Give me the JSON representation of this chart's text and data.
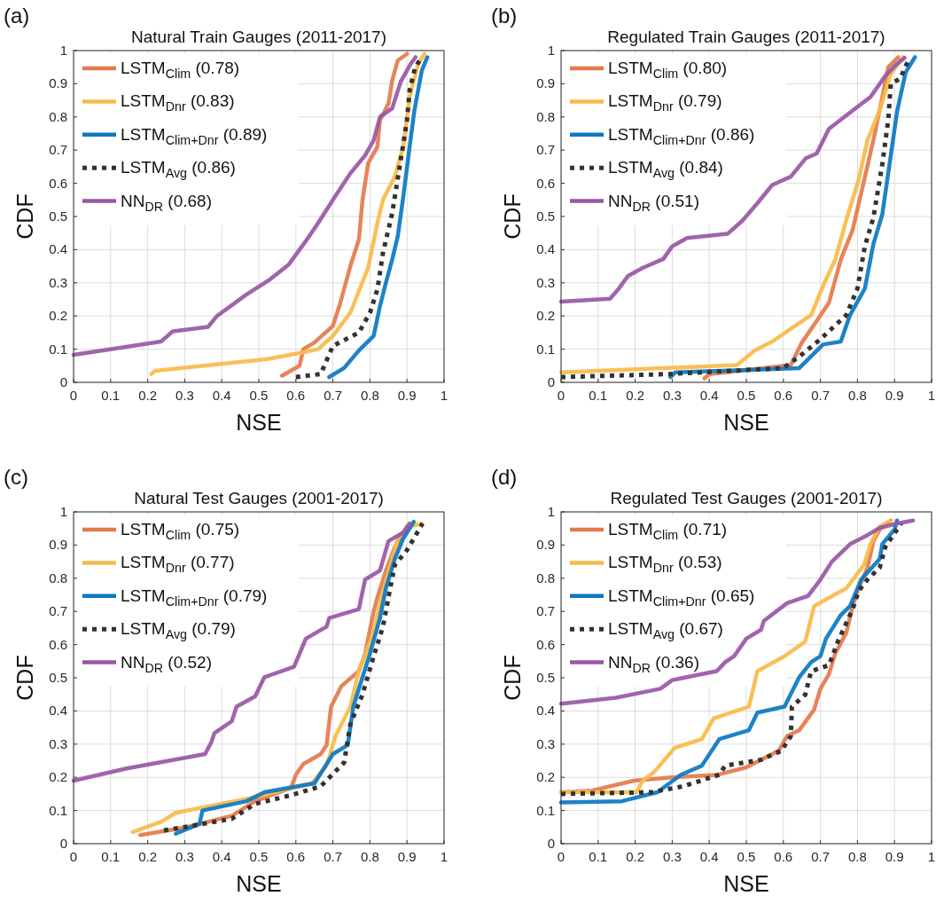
{
  "chart_data": [
    {
      "type": "line",
      "title": "Natural Train Gauges (2011-2017)",
      "xlabel": "NSE",
      "ylabel": "CDF",
      "annotations": [
        "(a)"
      ],
      "xlim": [
        0,
        1
      ],
      "ylim": [
        0,
        1
      ],
      "xticks": [
        0,
        0.1,
        0.2,
        0.3,
        0.4,
        0.5,
        0.6,
        0.7,
        0.8,
        0.9,
        1
      ],
      "yticks": [
        0,
        0.1,
        0.2,
        0.3,
        0.4,
        0.5,
        0.6,
        0.7,
        0.8,
        0.9,
        1
      ],
      "grid": true,
      "legend": "top left",
      "series": [
        {
          "name": "LSTM$_{Clim}$ (0.78)",
          "color": "#e4794c",
          "x": [
            0.563,
            0.61,
            0.62,
            0.65,
            0.7,
            0.72,
            0.747,
            0.77,
            0.78,
            0.795,
            0.82,
            0.827,
            0.85,
            0.86,
            0.875,
            0.9
          ],
          "values": [
            0.02,
            0.05,
            0.1,
            0.12,
            0.17,
            0.24,
            0.35,
            0.43,
            0.55,
            0.66,
            0.71,
            0.79,
            0.84,
            0.91,
            0.97,
            0.99
          ]
        },
        {
          "name": "LSTM$_{Dnr}$ (0.83)",
          "color": "#f7bb4a",
          "x": [
            0.21,
            0.22,
            0.523,
            0.603,
            0.66,
            0.7,
            0.747,
            0.795,
            0.82,
            0.835,
            0.867,
            0.89,
            0.907,
            0.93,
            0.947
          ],
          "values": [
            0.025,
            0.035,
            0.07,
            0.087,
            0.1,
            0.14,
            0.21,
            0.345,
            0.48,
            0.55,
            0.62,
            0.71,
            0.86,
            0.96,
            0.99
          ]
        },
        {
          "name": "LSTM$_{Clim+Dnr}$ (0.89)",
          "color": "#0a78c2",
          "x": [
            0.69,
            0.73,
            0.77,
            0.81,
            0.827,
            0.843,
            0.86,
            0.875,
            0.89,
            0.907,
            0.92,
            0.94,
            0.955
          ],
          "values": [
            0.016,
            0.043,
            0.096,
            0.14,
            0.23,
            0.3,
            0.37,
            0.44,
            0.56,
            0.71,
            0.82,
            0.94,
            0.98
          ]
        },
        {
          "name": "LSTM$_{Avg}$ (0.86)",
          "color": "#333333",
          "line_style": "dotted",
          "x": [
            0.6,
            0.667,
            0.7,
            0.77,
            0.8,
            0.82,
            0.835,
            0.86,
            0.883,
            0.9,
            0.907,
            0.922,
            0.94
          ],
          "values": [
            0.016,
            0.025,
            0.11,
            0.15,
            0.21,
            0.28,
            0.39,
            0.51,
            0.67,
            0.79,
            0.88,
            0.95,
            0.98
          ]
        },
        {
          "name": "NN$_{DR}$ (0.68)",
          "color": "#9857a5",
          "x": [
            0,
            0.236,
            0.268,
            0.363,
            0.387,
            0.467,
            0.53,
            0.58,
            0.627,
            0.66,
            0.7,
            0.747,
            0.787,
            0.81,
            0.827,
            0.86,
            0.883,
            0.91,
            0.923
          ],
          "values": [
            0.083,
            0.123,
            0.154,
            0.167,
            0.2,
            0.265,
            0.31,
            0.354,
            0.426,
            0.48,
            0.55,
            0.63,
            0.684,
            0.73,
            0.8,
            0.826,
            0.906,
            0.96,
            0.98
          ]
        }
      ]
    },
    {
      "type": "line",
      "title": "Regulated Train Gauges (2011-2017)",
      "xlabel": "NSE",
      "ylabel": "CDF",
      "annotations": [
        "(b)"
      ],
      "xlim": [
        0,
        1
      ],
      "ylim": [
        0,
        1
      ],
      "xticks": [
        0,
        0.1,
        0.2,
        0.3,
        0.4,
        0.5,
        0.6,
        0.7,
        0.8,
        0.9,
        1
      ],
      "yticks": [
        0,
        0.1,
        0.2,
        0.3,
        0.4,
        0.5,
        0.6,
        0.7,
        0.8,
        0.9,
        1
      ],
      "grid": true,
      "legend": "top left",
      "series": [
        {
          "name": "LSTM$_{Clim}$ (0.80)",
          "color": "#e4794c",
          "x": [
            0.387,
            0.4,
            0.62,
            0.65,
            0.69,
            0.723,
            0.755,
            0.787,
            0.81,
            0.843,
            0.867,
            0.883,
            0.91
          ],
          "values": [
            0.012,
            0.025,
            0.052,
            0.12,
            0.185,
            0.24,
            0.37,
            0.46,
            0.57,
            0.73,
            0.86,
            0.95,
            0.98
          ]
        },
        {
          "name": "LSTM$_{Dnr}$ (0.79)",
          "color": "#f7bb4a",
          "x": [
            0,
            0.475,
            0.523,
            0.57,
            0.627,
            0.675,
            0.707,
            0.74,
            0.77,
            0.803,
            0.827,
            0.86,
            0.89,
            0.923
          ],
          "values": [
            0.03,
            0.052,
            0.096,
            0.123,
            0.167,
            0.203,
            0.29,
            0.37,
            0.49,
            0.61,
            0.73,
            0.82,
            0.93,
            0.98
          ]
        },
        {
          "name": "LSTM$_{Clim+Dnr}$ (0.86)",
          "color": "#0a78c2",
          "x": [
            0.295,
            0.308,
            0.643,
            0.667,
            0.707,
            0.755,
            0.78,
            0.82,
            0.843,
            0.867,
            0.89,
            0.907,
            0.93,
            0.955
          ],
          "values": [
            0.016,
            0.03,
            0.043,
            0.07,
            0.114,
            0.123,
            0.203,
            0.283,
            0.417,
            0.506,
            0.684,
            0.817,
            0.934,
            0.98
          ]
        },
        {
          "name": "LSTM$_{Avg}$ (0.84)",
          "color": "#333333",
          "line_style": "dotted",
          "x": [
            0,
            0.29,
            0.6,
            0.643,
            0.7,
            0.77,
            0.8,
            0.82,
            0.843,
            0.867,
            0.883,
            0.89,
            0.915,
            0.94
          ],
          "values": [
            0.016,
            0.025,
            0.043,
            0.078,
            0.13,
            0.203,
            0.283,
            0.41,
            0.497,
            0.657,
            0.79,
            0.9,
            0.915,
            0.978
          ]
        },
        {
          "name": "NN$_{DR}$ (0.51)",
          "color": "#9857a5",
          "x": [
            0,
            0.132,
            0.156,
            0.18,
            0.22,
            0.276,
            0.3,
            0.34,
            0.45,
            0.49,
            0.53,
            0.57,
            0.62,
            0.66,
            0.69,
            0.723,
            0.795,
            0.835,
            0.875,
            0.907,
            0.927
          ],
          "values": [
            0.243,
            0.252,
            0.283,
            0.32,
            0.345,
            0.372,
            0.41,
            0.435,
            0.448,
            0.488,
            0.54,
            0.595,
            0.62,
            0.675,
            0.69,
            0.764,
            0.826,
            0.86,
            0.924,
            0.96,
            0.978
          ]
        }
      ]
    },
    {
      "type": "line",
      "title": "Natural Test Gauges (2001-2017)",
      "xlabel": "NSE",
      "ylabel": "CDF",
      "annotations": [
        "(c)"
      ],
      "xlim": [
        0,
        1
      ],
      "ylim": [
        0,
        1
      ],
      "xticks": [
        0,
        0.1,
        0.2,
        0.3,
        0.4,
        0.5,
        0.6,
        0.7,
        0.8,
        0.9,
        1
      ],
      "yticks": [
        0,
        0.1,
        0.2,
        0.3,
        0.4,
        0.5,
        0.6,
        0.7,
        0.8,
        0.9,
        1
      ],
      "grid": true,
      "legend": "top left",
      "series": [
        {
          "name": "LSTM$_{Clim}$ (0.75)",
          "color": "#e4794c",
          "x": [
            0.18,
            0.3,
            0.427,
            0.49,
            0.587,
            0.6,
            0.62,
            0.667,
            0.683,
            0.695,
            0.723,
            0.77,
            0.787,
            0.81,
            0.818,
            0.843,
            0.867,
            0.9
          ],
          "values": [
            0.026,
            0.048,
            0.084,
            0.128,
            0.168,
            0.208,
            0.24,
            0.27,
            0.297,
            0.413,
            0.475,
            0.52,
            0.573,
            0.7,
            0.734,
            0.823,
            0.894,
            0.956
          ]
        },
        {
          "name": "LSTM$_{Dnr}$ (0.77)",
          "color": "#f7bb4a",
          "x": [
            0.16,
            0.236,
            0.276,
            0.475,
            0.643,
            0.683,
            0.707,
            0.747,
            0.77,
            0.81,
            0.827,
            0.86,
            0.875,
            0.907,
            0.94
          ],
          "values": [
            0.035,
            0.066,
            0.093,
            0.137,
            0.182,
            0.235,
            0.324,
            0.413,
            0.52,
            0.636,
            0.725,
            0.858,
            0.92,
            0.956,
            0.965
          ]
        },
        {
          "name": "LSTM$_{Clim+Dnr}$ (0.79)",
          "color": "#0a78c2",
          "x": [
            0.276,
            0.34,
            0.348,
            0.467,
            0.515,
            0.65,
            0.7,
            0.74,
            0.755,
            0.78,
            0.8,
            0.827,
            0.843,
            0.867,
            0.89,
            0.918
          ],
          "values": [
            0.03,
            0.06,
            0.1,
            0.128,
            0.155,
            0.182,
            0.27,
            0.297,
            0.413,
            0.502,
            0.573,
            0.68,
            0.77,
            0.858,
            0.92,
            0.97
          ]
        },
        {
          "name": "LSTM$_{Avg}$ (0.79)",
          "color": "#333333",
          "line_style": "dotted",
          "x": [
            0.244,
            0.315,
            0.427,
            0.49,
            0.587,
            0.667,
            0.73,
            0.747,
            0.78,
            0.81,
            0.835,
            0.85,
            0.867,
            0.9,
            0.942
          ],
          "values": [
            0.04,
            0.053,
            0.075,
            0.12,
            0.146,
            0.173,
            0.244,
            0.36,
            0.45,
            0.565,
            0.654,
            0.743,
            0.84,
            0.885,
            0.965
          ]
        },
        {
          "name": "NN$_{DR}$ (0.52)",
          "color": "#9857a5",
          "x": [
            0,
            0.14,
            0.355,
            0.372,
            0.38,
            0.427,
            0.44,
            0.49,
            0.515,
            0.595,
            0.627,
            0.683,
            0.69,
            0.77,
            0.787,
            0.827,
            0.85,
            0.89,
            0.907
          ],
          "values": [
            0.19,
            0.226,
            0.27,
            0.306,
            0.333,
            0.369,
            0.413,
            0.444,
            0.502,
            0.533,
            0.618,
            0.654,
            0.68,
            0.707,
            0.796,
            0.823,
            0.912,
            0.938,
            0.965
          ]
        }
      ]
    },
    {
      "type": "line",
      "title": "Regulated Test Gauges (2001-2017)",
      "xlabel": "NSE",
      "ylabel": "CDF",
      "annotations": [
        "(d)"
      ],
      "xlim": [
        0,
        1
      ],
      "ylim": [
        0,
        1
      ],
      "xticks": [
        0,
        0.1,
        0.2,
        0.3,
        0.4,
        0.5,
        0.6,
        0.7,
        0.8,
        0.9,
        1
      ],
      "yticks": [
        0,
        0.1,
        0.2,
        0.3,
        0.4,
        0.5,
        0.6,
        0.7,
        0.8,
        0.9,
        1
      ],
      "grid": true,
      "legend": "top left",
      "series": [
        {
          "name": "LSTM$_{Clim}$ (0.71)",
          "color": "#e4794c",
          "x": [
            0,
            0.084,
            0.196,
            0.3,
            0.42,
            0.5,
            0.587,
            0.61,
            0.643,
            0.683,
            0.7,
            0.723,
            0.74,
            0.77,
            0.787,
            0.803,
            0.827,
            0.843,
            0.86,
            0.89
          ],
          "values": [
            0.155,
            0.16,
            0.19,
            0.2,
            0.207,
            0.23,
            0.28,
            0.324,
            0.342,
            0.404,
            0.467,
            0.511,
            0.573,
            0.636,
            0.716,
            0.77,
            0.832,
            0.912,
            0.947,
            0.974
          ]
        },
        {
          "name": "LSTM$_{Dnr}$ (0.53)",
          "color": "#f7bb4a",
          "x": [
            0,
            0.204,
            0.22,
            0.252,
            0.307,
            0.38,
            0.412,
            0.507,
            0.53,
            0.603,
            0.659,
            0.683,
            0.77,
            0.818,
            0.835,
            0.86,
            0.89
          ],
          "values": [
            0.155,
            0.155,
            0.19,
            0.217,
            0.289,
            0.315,
            0.378,
            0.413,
            0.52,
            0.565,
            0.609,
            0.716,
            0.77,
            0.841,
            0.903,
            0.956,
            0.974
          ]
        },
        {
          "name": "LSTM$_{Clim+Dnr}$ (0.65)",
          "color": "#0a78c2",
          "x": [
            0,
            0.164,
            0.26,
            0.324,
            0.38,
            0.427,
            0.507,
            0.53,
            0.603,
            0.643,
            0.675,
            0.7,
            0.715,
            0.755,
            0.78,
            0.81,
            0.86,
            0.867,
            0.9,
            0.907
          ],
          "values": [
            0.124,
            0.128,
            0.155,
            0.208,
            0.235,
            0.315,
            0.342,
            0.395,
            0.413,
            0.502,
            0.547,
            0.565,
            0.618,
            0.689,
            0.716,
            0.796,
            0.858,
            0.903,
            0.947,
            0.974
          ]
        },
        {
          "name": "LSTM$_{Avg}$ (0.67)",
          "color": "#333333",
          "line_style": "dotted",
          "x": [
            0,
            0.244,
            0.33,
            0.427,
            0.443,
            0.54,
            0.595,
            0.62,
            0.623,
            0.659,
            0.675,
            0.723,
            0.747,
            0.787,
            0.803,
            0.827,
            0.86,
            0.875,
            0.907,
            0.918
          ],
          "values": [
            0.15,
            0.155,
            0.173,
            0.208,
            0.235,
            0.253,
            0.28,
            0.324,
            0.413,
            0.449,
            0.52,
            0.538,
            0.609,
            0.707,
            0.761,
            0.796,
            0.832,
            0.894,
            0.947,
            0.965
          ]
        },
        {
          "name": "NN$_{DR}$ (0.36)",
          "color": "#9857a5",
          "x": [
            0,
            0.148,
            0.268,
            0.3,
            0.42,
            0.443,
            0.467,
            0.5,
            0.54,
            0.547,
            0.61,
            0.667,
            0.7,
            0.731,
            0.78,
            0.827,
            0.86,
            0.907,
            0.95
          ],
          "values": [
            0.422,
            0.44,
            0.467,
            0.493,
            0.52,
            0.547,
            0.565,
            0.618,
            0.645,
            0.671,
            0.725,
            0.747,
            0.796,
            0.85,
            0.903,
            0.93,
            0.952,
            0.965,
            0.974
          ]
        }
      ]
    }
  ]
}
